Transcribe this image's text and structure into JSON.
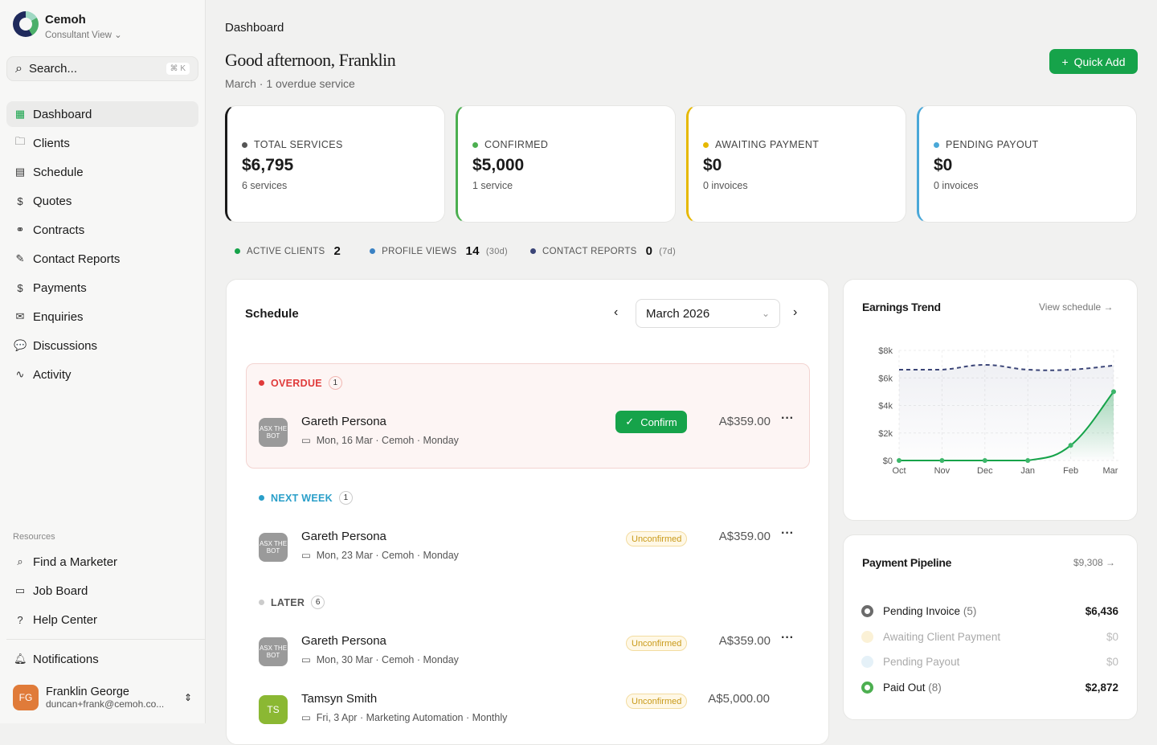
{
  "brand": {
    "name": "Cemoh",
    "view": "Consultant View"
  },
  "search": {
    "placeholder": "Search...",
    "shortcut": "⌘ K"
  },
  "nav": [
    {
      "label": "Dashboard",
      "icon": "grid-icon",
      "glyph": "▦"
    },
    {
      "label": "Clients",
      "icon": "folder-icon",
      "glyph": "🗀"
    },
    {
      "label": "Schedule",
      "icon": "calendar-icon",
      "glyph": "▤"
    },
    {
      "label": "Quotes",
      "icon": "dollar-file-icon",
      "glyph": "$"
    },
    {
      "label": "Contracts",
      "icon": "handshake-icon",
      "glyph": "⚭"
    },
    {
      "label": "Contact Reports",
      "icon": "notebook-icon",
      "glyph": "✎"
    },
    {
      "label": "Payments",
      "icon": "dollar-icon",
      "glyph": "$"
    },
    {
      "label": "Enquiries",
      "icon": "mail-icon",
      "glyph": "✉"
    },
    {
      "label": "Discussions",
      "icon": "chat-icon",
      "glyph": "💬"
    },
    {
      "label": "Activity",
      "icon": "pulse-icon",
      "glyph": "∿"
    }
  ],
  "resources": {
    "label": "Resources",
    "items": [
      {
        "label": "Find a Marketer",
        "glyph": "⌕"
      },
      {
        "label": "Job Board",
        "glyph": "▭"
      },
      {
        "label": "Help Center",
        "glyph": "?"
      }
    ]
  },
  "notifications": "Notifications",
  "user": {
    "initials": "FG",
    "name": "Franklin George",
    "email": "duncan+frank@cemoh.co..."
  },
  "header": {
    "breadcrumb": "Dashboard",
    "greeting": "Good afternoon, Franklin",
    "subtitle": "March · 1 overdue service",
    "quick_add": "Quick Add"
  },
  "stats": [
    {
      "label": "TOTAL SERVICES",
      "value": "$6,795",
      "sub": "6 services",
      "color": "#1a1a1a",
      "dot": "#555555"
    },
    {
      "label": "CONFIRMED",
      "value": "$5,000",
      "sub": "1 service",
      "color": "#4caf50",
      "dot": "#4caf50"
    },
    {
      "label": "AWAITING PAYMENT",
      "value": "$0",
      "sub": "0 invoices",
      "color": "#e6b800",
      "dot": "#e6b800"
    },
    {
      "label": "PENDING PAYOUT",
      "value": "$0",
      "sub": "0 invoices",
      "color": "#4aa8d8",
      "dot": "#4aa8d8"
    }
  ],
  "metrics": [
    {
      "label": "ACTIVE CLIENTS",
      "value": "2",
      "note": "",
      "color": "#16a34a"
    },
    {
      "label": "PROFILE VIEWS",
      "value": "14",
      "note": "(30d)",
      "color": "#3b82c4"
    },
    {
      "label": "CONTACT REPORTS",
      "value": "0",
      "note": "(7d)",
      "color": "#3b4577"
    }
  ],
  "schedule": {
    "title": "Schedule",
    "month": "March 2026",
    "groups": [
      {
        "label": "OVERDUE",
        "count": "1",
        "color": "#e03a3a"
      },
      {
        "label": "NEXT WEEK",
        "count": "1",
        "color": "#2a9fc9"
      },
      {
        "label": "LATER",
        "count": "6",
        "color": "#555555"
      }
    ],
    "items": [
      {
        "name": "Gareth Persona",
        "date": "Mon, 16 Mar",
        "org": "Cemoh",
        "freq": "Monday",
        "amount": "A$359.00",
        "action": "Confirm",
        "avatar": "ASX THE BOT"
      },
      {
        "name": "Gareth Persona",
        "date": "Mon, 23 Mar",
        "org": "Cemoh",
        "freq": "Monday",
        "amount": "A$359.00",
        "status": "Unconfirmed",
        "avatar": "ASX THE BOT"
      },
      {
        "name": "Gareth Persona",
        "date": "Mon, 30 Mar",
        "org": "Cemoh",
        "freq": "Monday",
        "amount": "A$359.00",
        "status": "Unconfirmed",
        "avatar": "ASX THE BOT"
      },
      {
        "name": "Tamsyn Smith",
        "date": "Fri, 3 Apr",
        "org": "Marketing Automation",
        "freq": "Monthly",
        "amount": "A$5,000.00",
        "status": "Unconfirmed",
        "avatar": "TS"
      }
    ]
  },
  "earnings": {
    "title": "Earnings Trend",
    "link": "View schedule →"
  },
  "chart_data": {
    "type": "line",
    "categories": [
      "Oct",
      "Nov",
      "Dec",
      "Jan",
      "Feb",
      "Mar"
    ],
    "yticks": [
      "$0",
      "$2k",
      "$4k",
      "$6k",
      "$8k"
    ],
    "ylim": [
      0,
      8000
    ],
    "grid": true,
    "series": [
      {
        "values": [
          6600,
          6600,
          6950,
          6600,
          6600,
          6900
        ],
        "style": "dashed",
        "color": "#3b4577"
      },
      {
        "values": [
          0,
          0,
          0,
          0,
          1100,
          5000
        ],
        "style": "solid",
        "color": "#16a34a"
      }
    ]
  },
  "pipeline": {
    "title": "Payment Pipeline",
    "total": "$9,308 →",
    "items": [
      {
        "label": "Pending Invoice",
        "count": "(5)",
        "value": "$6,436",
        "color": "#6b6b6b",
        "active": true
      },
      {
        "label": "Awaiting Client Payment",
        "count": "",
        "value": "$0",
        "color": "#fbf1d6",
        "active": false
      },
      {
        "label": "Pending Payout",
        "count": "",
        "value": "$0",
        "color": "#e5f1f8",
        "active": false
      },
      {
        "label": "Paid Out",
        "count": "(8)",
        "value": "$2,872",
        "color": "#4caf50",
        "active": true
      }
    ]
  }
}
